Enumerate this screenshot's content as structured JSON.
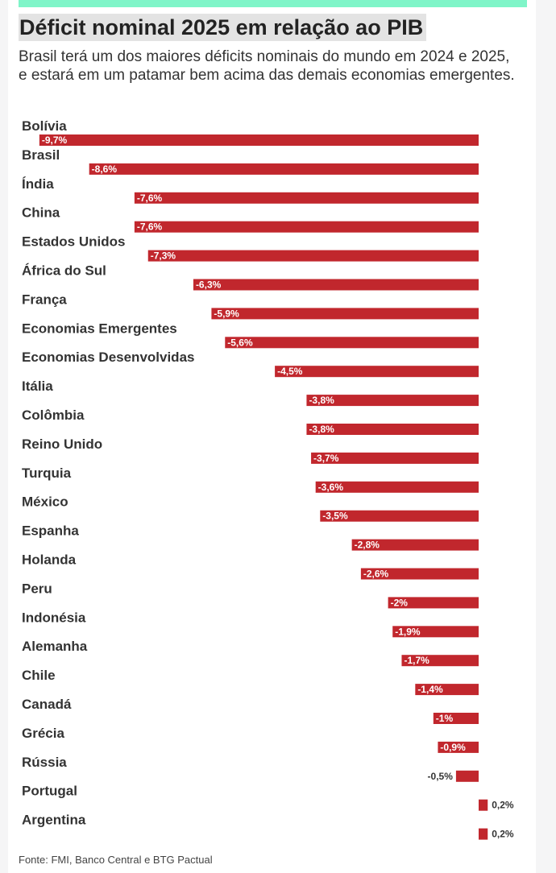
{
  "header": {
    "title": "Déficit nominal 2025 em relação ao PIB",
    "subtitle": "Brasil terá um dos maiores déficits nominais do mundo em 2024 e 2025, e estará em um patamar bem acima das demais economias emergentes."
  },
  "footer": {
    "source": "Fonte: FMI, Banco Central e BTG Pactual"
  },
  "colors": {
    "bar": "#c1272d",
    "accent_bar": "#7ff5c8"
  },
  "chart_data": {
    "type": "bar",
    "orientation": "horizontal",
    "categories": [
      "Bolívia",
      "Brasil",
      "Índia",
      "China",
      "Estados Unidos",
      "África do Sul",
      "França",
      "Economias Emergentes",
      "Economias Desenvolvidas",
      "Itália",
      "Colômbia",
      "Reino Unido",
      "Turquia",
      "México",
      "Espanha",
      "Holanda",
      "Peru",
      "Indonésia",
      "Alemanha",
      "Chile",
      "Canadá",
      "Grécia",
      "Rússia",
      "Portugal",
      "Argentina"
    ],
    "values": [
      -9.7,
      -8.6,
      -7.6,
      -7.6,
      -7.3,
      -6.3,
      -5.9,
      -5.6,
      -4.5,
      -3.8,
      -3.8,
      -3.7,
      -3.6,
      -3.5,
      -2.8,
      -2.6,
      -2.0,
      -1.9,
      -1.7,
      -1.4,
      -1.0,
      -0.9,
      -0.5,
      0.2,
      0.2
    ],
    "labels": [
      "-9,7%",
      "-8,6%",
      "-7,6%",
      "-7,6%",
      "-7,3%",
      "-6,3%",
      "-5,9%",
      "-5,6%",
      "-4,5%",
      "-3,8%",
      "-3,8%",
      "-3,7%",
      "-3,6%",
      "-3,5%",
      "-2,8%",
      "-2,6%",
      "-2%",
      "-1,9%",
      "-1,7%",
      "-1,4%",
      "-1%",
      "-0,9%",
      "-0,5%",
      "0,2%",
      "0,2%"
    ],
    "grid": false,
    "legend": "none"
  }
}
